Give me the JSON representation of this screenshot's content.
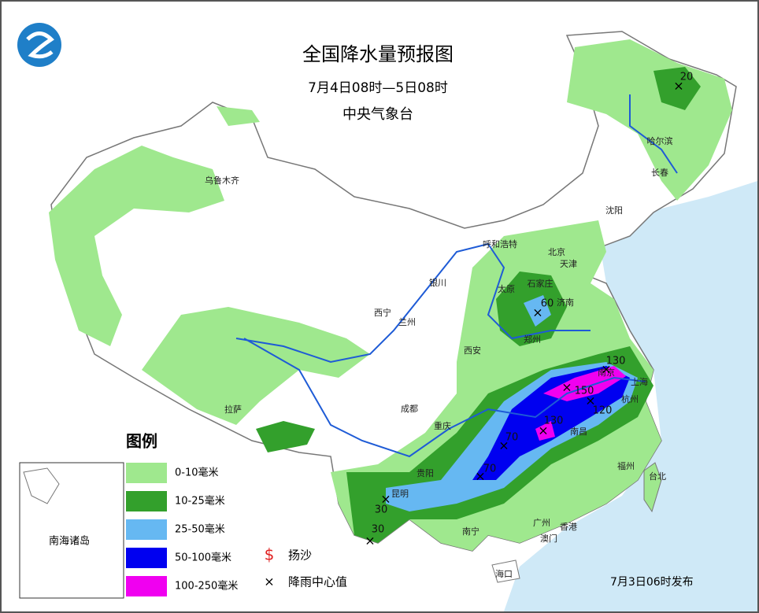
{
  "header": {
    "title": "全国降水量预报图",
    "period": "7月4日08时—5日08时",
    "issuer": "中央气象台"
  },
  "legend": {
    "title": "图例",
    "items": [
      {
        "label": "0-10毫米",
        "color": "#9fe88e"
      },
      {
        "label": "10-25毫米",
        "color": "#33a02c"
      },
      {
        "label": "25-50毫米",
        "color": "#66b8f2"
      },
      {
        "label": "50-100毫米",
        "color": "#0000f0"
      },
      {
        "label": "100-250毫米",
        "color": "#f000f0"
      }
    ],
    "symbols": [
      {
        "symbol": "$",
        "label": "扬沙"
      },
      {
        "symbol": "×",
        "label": "降雨中心值"
      }
    ]
  },
  "inset_label": "南海诸岛",
  "cities": [
    "乌鲁木齐",
    "哈尔滨",
    "长春",
    "沈阳",
    "呼和浩特",
    "北京",
    "天津",
    "石家庄",
    "太原",
    "济南",
    "银川",
    "西宁",
    "兰州",
    "郑州",
    "西安",
    "成都",
    "拉萨",
    "重庆",
    "南京",
    "上海",
    "杭州",
    "南昌",
    "贵阳",
    "昆明",
    "福州",
    "台北",
    "南宁",
    "广州",
    "香港",
    "澳门",
    "海口"
  ],
  "rain_centers": [
    20,
    60,
    130,
    150,
    120,
    130,
    70,
    70,
    30,
    30
  ],
  "footer": "7月3日06时发布"
}
